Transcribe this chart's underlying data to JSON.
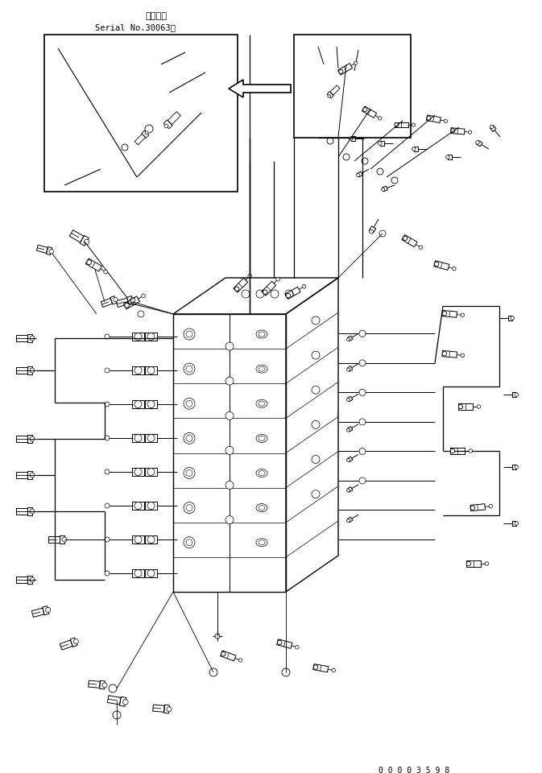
{
  "title_line1": "適用号機",
  "title_line2": "Serial No.30063～",
  "part_number": "0 0 0 0 3 5 9 8",
  "bg_color": "#ffffff",
  "line_color": "#000000",
  "fig_width": 6.73,
  "fig_height": 9.6,
  "dpi": 100
}
